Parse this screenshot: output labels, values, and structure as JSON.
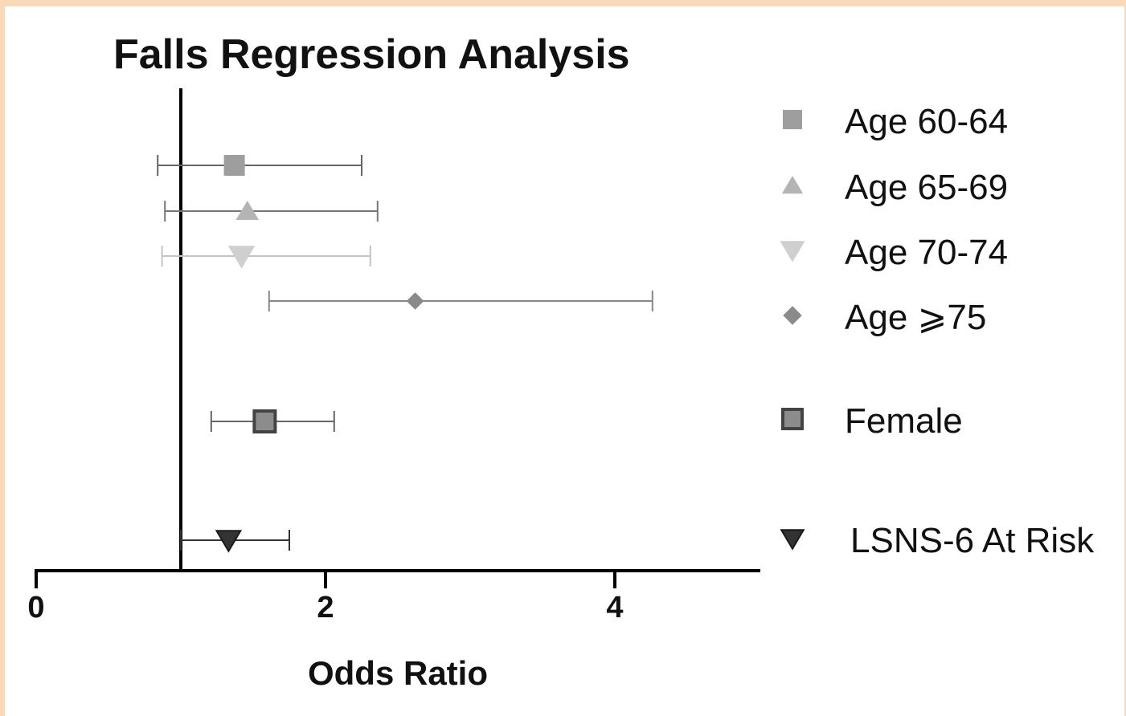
{
  "chart_data": {
    "type": "forest",
    "title": "Falls Regression Analysis",
    "xlabel": "Odds Ratio",
    "ylabel": "",
    "xlim": [
      0,
      5
    ],
    "xticks": [
      {
        "value": 0,
        "label": "0"
      },
      {
        "value": 2,
        "label": "2"
      },
      {
        "value": 4,
        "label": "4"
      }
    ],
    "reference_line": 1,
    "legend_position": "right",
    "series": [
      {
        "name": "Age 60-64",
        "estimate": 1.37,
        "lower": 0.84,
        "upper": 2.25,
        "marker": "square",
        "color": "#9e9e9e",
        "stroke": "#9e9e9e"
      },
      {
        "name": "Age 65-69",
        "estimate": 1.46,
        "lower": 0.89,
        "upper": 2.36,
        "marker": "triangle-up",
        "color": "#b4b4b4",
        "stroke": "#b4b4b4"
      },
      {
        "name": "Age 70-74",
        "estimate": 1.42,
        "lower": 0.87,
        "upper": 2.31,
        "marker": "triangle-down",
        "color": "#cfcfcf",
        "stroke": "#cfcfcf"
      },
      {
        "name": "Age ⩾75",
        "estimate": 2.62,
        "lower": 1.61,
        "upper": 4.26,
        "marker": "diamond",
        "color": "#8a8a8a",
        "stroke": "#8a8a8a"
      },
      {
        "name": "Female",
        "estimate": 1.58,
        "lower": 1.21,
        "upper": 2.06,
        "marker": "square-outlined",
        "color": "#8c8c8c",
        "stroke": "#444444"
      },
      {
        "name": "LSNS-6 At Risk",
        "estimate": 1.33,
        "lower": 1.0,
        "upper": 1.75,
        "marker": "triangle-down",
        "color": "#333333",
        "stroke": "#1a1a1a"
      }
    ]
  }
}
